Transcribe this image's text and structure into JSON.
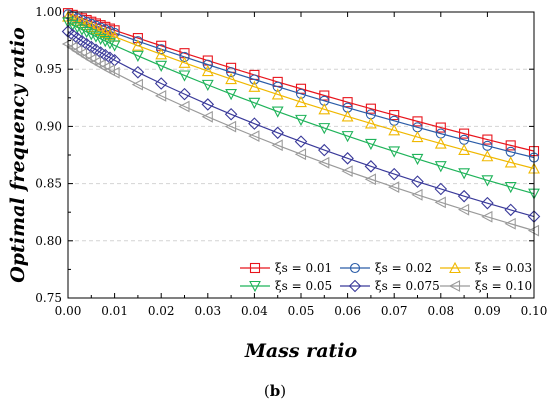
{
  "caption": {
    "open": "(",
    "letter": "b",
    "close": ")"
  },
  "chart_data": {
    "type": "line",
    "xlabel": "Mass ratio",
    "ylabel": "Optimal frequency ratio",
    "xlim": [
      0.0,
      0.1
    ],
    "ylim": [
      0.75,
      1.0
    ],
    "x_ticks": [
      "0.00",
      "0.01",
      "0.02",
      "0.03",
      "0.04",
      "0.05",
      "0.06",
      "0.07",
      "0.08",
      "0.09",
      "0.10"
    ],
    "y_ticks": [
      "0.75",
      "0.80",
      "0.85",
      "0.90",
      "0.95",
      "1.00"
    ],
    "grid": "horizontal dashed",
    "legend_position": "bottom-right",
    "x": [
      0.0,
      0.001,
      0.002,
      0.003,
      0.004,
      0.005,
      0.006,
      0.007,
      0.008,
      0.009,
      0.01,
      0.015,
      0.02,
      0.025,
      0.03,
      0.035,
      0.04,
      0.045,
      0.05,
      0.055,
      0.06,
      0.065,
      0.07,
      0.075,
      0.08,
      0.085,
      0.09,
      0.095,
      0.1
    ],
    "series": [
      {
        "name": "ξs = 0.01",
        "color": "#e8141c",
        "marker": "square",
        "values": [
          0.999,
          0.9975,
          0.996,
          0.9945,
          0.993,
          0.9915,
          0.99,
          0.9885,
          0.987,
          0.9855,
          0.984,
          0.9772,
          0.9705,
          0.964,
          0.9576,
          0.9512,
          0.945,
          0.9389,
          0.9329,
          0.927,
          0.9212,
          0.9155,
          0.9099,
          0.9044,
          0.899,
          0.8937,
          0.8885,
          0.8834,
          0.8784
        ]
      },
      {
        "name": "ξs = 0.02",
        "color": "#2a5ca8",
        "marker": "circle",
        "values": [
          0.998,
          0.9963,
          0.9946,
          0.9929,
          0.9912,
          0.9896,
          0.988,
          0.9864,
          0.9848,
          0.9832,
          0.9817,
          0.9745,
          0.9675,
          0.9607,
          0.954,
          0.9474,
          0.941,
          0.9347,
          0.9285,
          0.9224,
          0.9164,
          0.9106,
          0.9049,
          0.8992,
          0.8937,
          0.8883,
          0.883,
          0.8778,
          0.8728
        ]
      },
      {
        "name": "ξs = 0.03",
        "color": "#f0b800",
        "marker": "triangle-up",
        "values": [
          0.996,
          0.9941,
          0.9922,
          0.9904,
          0.9886,
          0.9868,
          0.9851,
          0.9834,
          0.9817,
          0.98,
          0.9784,
          0.9706,
          0.963,
          0.9556,
          0.9484,
          0.9414,
          0.9346,
          0.9279,
          0.9213,
          0.9149,
          0.9087,
          0.9026,
          0.8966,
          0.8907,
          0.885,
          0.8794,
          0.8739,
          0.8685,
          0.8632
        ]
      },
      {
        "name": "ξs = 0.05",
        "color": "#1fb35a",
        "marker": "triangle-down",
        "values": [
          0.991,
          0.9888,
          0.9867,
          0.9846,
          0.9825,
          0.9805,
          0.9785,
          0.9765,
          0.9746,
          0.9727,
          0.9708,
          0.9617,
          0.953,
          0.9445,
          0.9363,
          0.9283,
          0.9206,
          0.913,
          0.9057,
          0.8985,
          0.8915,
          0.8847,
          0.8781,
          0.8716,
          0.8652,
          0.859,
          0.8529,
          0.847,
          0.8412
        ]
      },
      {
        "name": "ξs = 0.075",
        "color": "#3a3a9a",
        "marker": "diamond",
        "values": [
          0.983,
          0.98,
          0.9772,
          0.9745,
          0.9719,
          0.9694,
          0.967,
          0.9646,
          0.9623,
          0.96,
          0.9578,
          0.9473,
          0.9375,
          0.9282,
          0.9192,
          0.9106,
          0.9024,
          0.8944,
          0.8867,
          0.8793,
          0.8721,
          0.8651,
          0.8583,
          0.8517,
          0.8453,
          0.839,
          0.8329,
          0.827,
          0.8212
        ]
      },
      {
        "name": "ξs = 0.10",
        "color": "#9a9a9a",
        "marker": "triangle-left",
        "values": [
          0.972,
          0.969,
          0.9662,
          0.9635,
          0.9609,
          0.9584,
          0.956,
          0.9536,
          0.9513,
          0.9491,
          0.9469,
          0.9365,
          0.9267,
          0.9174,
          0.9084,
          0.8998,
          0.8915,
          0.8835,
          0.8757,
          0.8682,
          0.8609,
          0.8538,
          0.8469,
          0.8402,
          0.8336,
          0.8272,
          0.821,
          0.8149,
          0.8089
        ]
      }
    ]
  }
}
